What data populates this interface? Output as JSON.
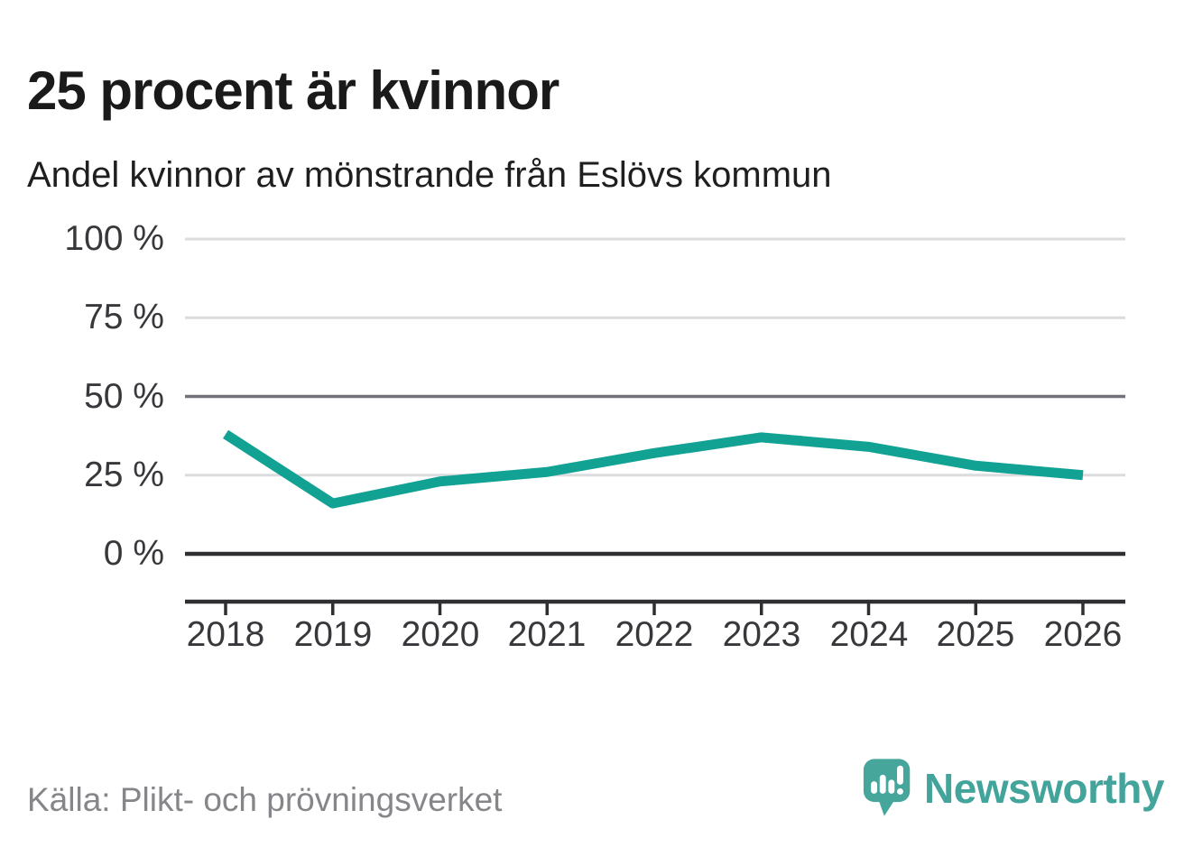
{
  "chart_data": {
    "type": "line",
    "title": "25 procent är kvinnor",
    "subtitle": "Andel kvinnor av mönstrande från Eslövs kommun",
    "categories": [
      2018,
      2019,
      2020,
      2021,
      2022,
      2023,
      2024,
      2025,
      2026
    ],
    "series": [
      {
        "name": "Andel kvinnor av mönstrande",
        "values": [
          38,
          16,
          23,
          26,
          32,
          37,
          34,
          28,
          25
        ],
        "color": "#12a294"
      }
    ],
    "ylim": [
      0,
      100
    ],
    "yticks": [
      100,
      75,
      50,
      25,
      0
    ],
    "ytick_labels": [
      "100 %",
      "75 %",
      "50 %",
      "25 %",
      "0 %"
    ],
    "unit": "%",
    "grid": "horizontal-only",
    "emphasized_gridline_at": 50,
    "zero_line": true,
    "legend": "none",
    "colors": {
      "light_gridline": "#dcdcde",
      "emphasized_gridline": "#71717a",
      "axis_line": "#2f2f31"
    }
  },
  "footer": {
    "source": "Källa: Plikt- och prövningsverket",
    "brand": "Newsworthy",
    "brand_color": "#42a49a"
  },
  "icons": {
    "logo": "newsworthy-speech-bubble-bar-chart-icon"
  }
}
